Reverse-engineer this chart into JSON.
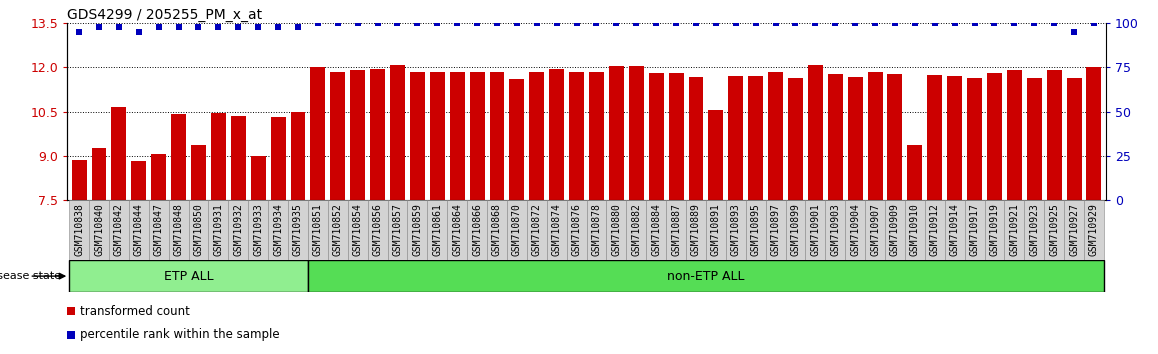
{
  "title": "GDS4299 / 205255_PM_x_at",
  "samples": [
    "GSM710838",
    "GSM710840",
    "GSM710842",
    "GSM710844",
    "GSM710847",
    "GSM710848",
    "GSM710850",
    "GSM710931",
    "GSM710932",
    "GSM710933",
    "GSM710934",
    "GSM710935",
    "GSM710851",
    "GSM710852",
    "GSM710854",
    "GSM710856",
    "GSM710857",
    "GSM710859",
    "GSM710861",
    "GSM710864",
    "GSM710866",
    "GSM710868",
    "GSM710870",
    "GSM710872",
    "GSM710874",
    "GSM710876",
    "GSM710878",
    "GSM710880",
    "GSM710882",
    "GSM710884",
    "GSM710887",
    "GSM710889",
    "GSM710891",
    "GSM710893",
    "GSM710895",
    "GSM710897",
    "GSM710899",
    "GSM710901",
    "GSM710903",
    "GSM710904",
    "GSM710907",
    "GSM710909",
    "GSM710910",
    "GSM710912",
    "GSM710914",
    "GSM710917",
    "GSM710919",
    "GSM710921",
    "GSM710923",
    "GSM710925",
    "GSM710927",
    "GSM710929"
  ],
  "bar_values": [
    8.85,
    9.25,
    10.65,
    8.82,
    9.05,
    10.42,
    9.35,
    10.45,
    10.35,
    9.0,
    10.3,
    10.48,
    12.0,
    11.85,
    11.9,
    11.95,
    12.08,
    11.85,
    11.85,
    11.85,
    11.85,
    11.85,
    11.6,
    11.85,
    11.95,
    11.85,
    11.85,
    12.05,
    12.05,
    11.82,
    11.82,
    11.68,
    10.55,
    11.72,
    11.72,
    11.85,
    11.62,
    12.08,
    11.78,
    11.68,
    11.85,
    11.78,
    9.38,
    11.75,
    11.72,
    11.62,
    11.82,
    11.92,
    11.62,
    11.92,
    11.65,
    12.0
  ],
  "percentile_values": [
    95,
    98,
    98,
    95,
    98,
    98,
    98,
    98,
    98,
    98,
    98,
    98,
    100,
    100,
    100,
    100,
    100,
    100,
    100,
    100,
    100,
    100,
    100,
    100,
    100,
    100,
    100,
    100,
    100,
    100,
    100,
    100,
    100,
    100,
    100,
    100,
    100,
    100,
    100,
    100,
    100,
    100,
    100,
    100,
    100,
    100,
    100,
    100,
    100,
    100,
    95,
    100
  ],
  "etp_count": 12,
  "ylim_left": [
    7.5,
    13.5
  ],
  "ylim_right": [
    0,
    100
  ],
  "yticks_left": [
    7.5,
    9.0,
    10.5,
    12.0,
    13.5
  ],
  "yticks_right": [
    0,
    25,
    50,
    75,
    100
  ],
  "bar_color": "#cc0000",
  "dot_color": "#0000bb",
  "etp_color": "#90ee90",
  "non_etp_color": "#55dd55",
  "tick_label_bg": "#d3d3d3",
  "title_fontsize": 10,
  "label_fontsize": 7,
  "disease_state_label": "disease state",
  "etp_label": "ETP ALL",
  "non_etp_label": "non-ETP ALL",
  "legend_red": "transformed count",
  "legend_blue": "percentile rank within the sample"
}
